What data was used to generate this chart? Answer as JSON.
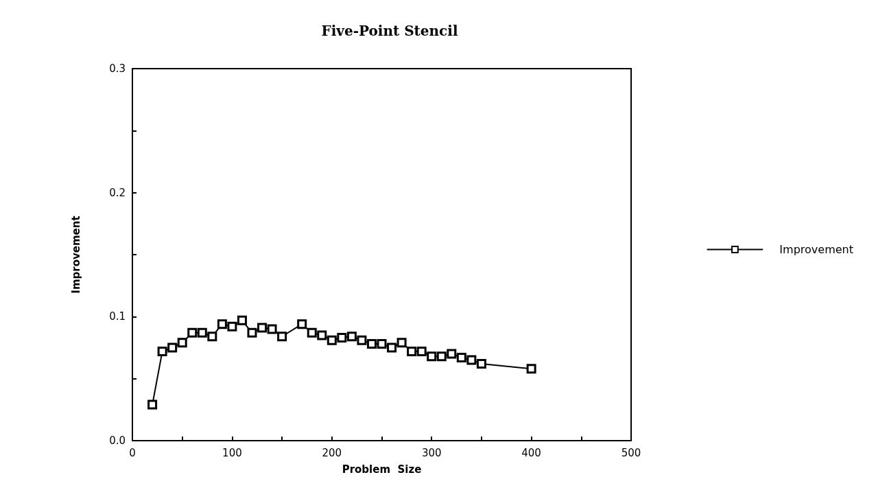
{
  "chart_data": {
    "type": "line",
    "title": "Five-Point Stencil",
    "xlabel": "Problem  Size",
    "ylabel": "Improvement",
    "x": [
      20,
      30,
      40,
      50,
      60,
      70,
      80,
      90,
      100,
      110,
      120,
      130,
      140,
      150,
      170,
      180,
      190,
      200,
      210,
      220,
      230,
      240,
      250,
      260,
      270,
      280,
      290,
      300,
      310,
      320,
      330,
      340,
      350,
      400
    ],
    "series": [
      {
        "name": "Improvement",
        "color": "#000000",
        "values": [
          0.029,
          0.072,
          0.075,
          0.079,
          0.087,
          0.087,
          0.084,
          0.094,
          0.092,
          0.097,
          0.087,
          0.091,
          0.09,
          0.084,
          0.094,
          0.087,
          0.085,
          0.081,
          0.083,
          0.084,
          0.081,
          0.078,
          0.078,
          0.075,
          0.079,
          0.072,
          0.072,
          0.068,
          0.068,
          0.07,
          0.067,
          0.065,
          0.062,
          0.058
        ]
      }
    ],
    "xlim": [
      0,
      500
    ],
    "xticks": [
      0,
      {
        "value": 50,
        "label": null
      },
      100,
      {
        "value": 150,
        "label": null
      },
      200,
      {
        "value": 250,
        "label": null
      },
      300,
      {
        "value": 350,
        "label": null
      },
      400,
      {
        "value": 450,
        "label": null
      },
      500
    ],
    "ylim": [
      0,
      0.3
    ],
    "yticks": [
      {
        "value": 0,
        "label": "0.0"
      },
      {
        "value": 0.05,
        "label": null
      },
      0.1,
      {
        "value": 0.15,
        "label": null
      },
      0.2,
      {
        "value": 0.25,
        "label": null
      },
      0.3
    ],
    "grid": false,
    "legend": "right",
    "marker": "square",
    "line_style": "solid"
  }
}
